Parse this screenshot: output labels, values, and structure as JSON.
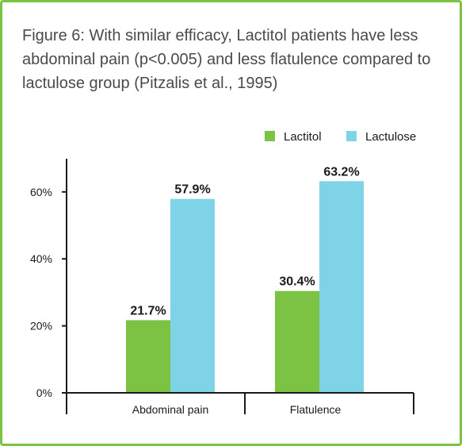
{
  "title": "Figure 6: With similar efficacy, Lactitol patients have less abdominal pain (p<0.005) and less flatulence compared to lactulose group (Pitzalis et al., 1995)",
  "colors": {
    "border": "#7cc243",
    "lactitol": "#7cc243",
    "lactulose": "#7fd3e6",
    "axis": "#1a1a1a"
  },
  "chart_data": {
    "type": "bar",
    "categories": [
      "Abdominal pain",
      "Flatulence"
    ],
    "series": [
      {
        "name": "Lactitol",
        "values": [
          21.7,
          30.4
        ],
        "labels": [
          "21.7%",
          "30.4%"
        ],
        "color": "#7cc243"
      },
      {
        "name": "Lactulose",
        "values": [
          57.9,
          63.2
        ],
        "labels": [
          "57.9%",
          "63.2%"
        ],
        "color": "#7fd3e6"
      }
    ],
    "ylim": [
      0,
      70
    ],
    "yticks": [
      0,
      20,
      40,
      60
    ],
    "ytick_labels": [
      "0%",
      "20%",
      "40%",
      "60%"
    ],
    "legend_position": "top-right",
    "grid": false
  }
}
